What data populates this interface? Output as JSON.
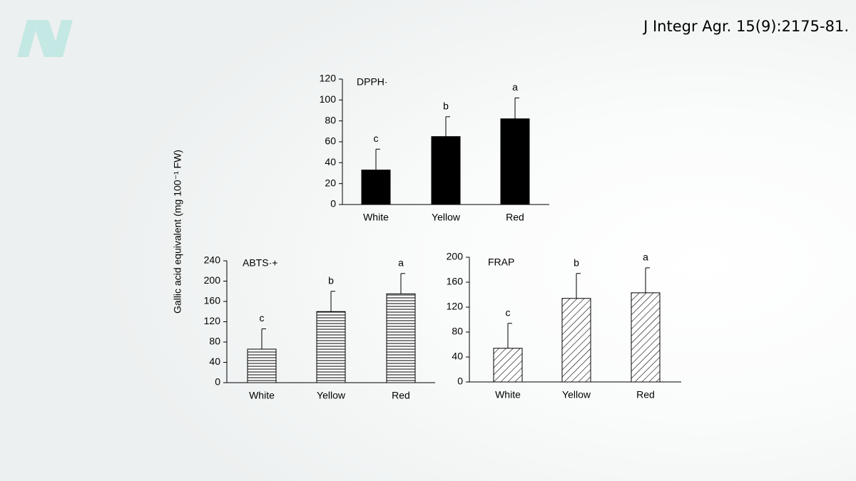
{
  "citation": "J Integr Agr. 15(9):2175-81.",
  "ylabel": "Gallic acid equivalent (mg 100⁻¹ FW)",
  "chart_data": [
    {
      "type": "bar",
      "title": "DPPH·",
      "pattern": "solid",
      "color": "#000000",
      "categories": [
        "White",
        "Yellow",
        "Red"
      ],
      "values": [
        33,
        65,
        82
      ],
      "errors": [
        20,
        19,
        20
      ],
      "letters": [
        "c",
        "b",
        "a"
      ],
      "ylim": [
        0,
        120
      ],
      "yticks": [
        0,
        20,
        40,
        60,
        80,
        100,
        120
      ]
    },
    {
      "type": "bar",
      "title": "ABTS·+",
      "pattern": "horizontal",
      "color": "#000000",
      "categories": [
        "White",
        "Yellow",
        "Red"
      ],
      "values": [
        66,
        140,
        175
      ],
      "errors": [
        40,
        40,
        40
      ],
      "letters": [
        "c",
        "b",
        "a"
      ],
      "ylim": [
        0,
        240
      ],
      "yticks": [
        0,
        40,
        80,
        120,
        160,
        200,
        240
      ]
    },
    {
      "type": "bar",
      "title": "FRAP",
      "pattern": "diagonal",
      "color": "#000000",
      "categories": [
        "White",
        "Yellow",
        "Red"
      ],
      "values": [
        54,
        134,
        143
      ],
      "errors": [
        40,
        40,
        40
      ],
      "letters": [
        "c",
        "b",
        "a"
      ],
      "ylim": [
        0,
        200
      ],
      "yticks": [
        0,
        40,
        80,
        120,
        160,
        200
      ]
    }
  ]
}
